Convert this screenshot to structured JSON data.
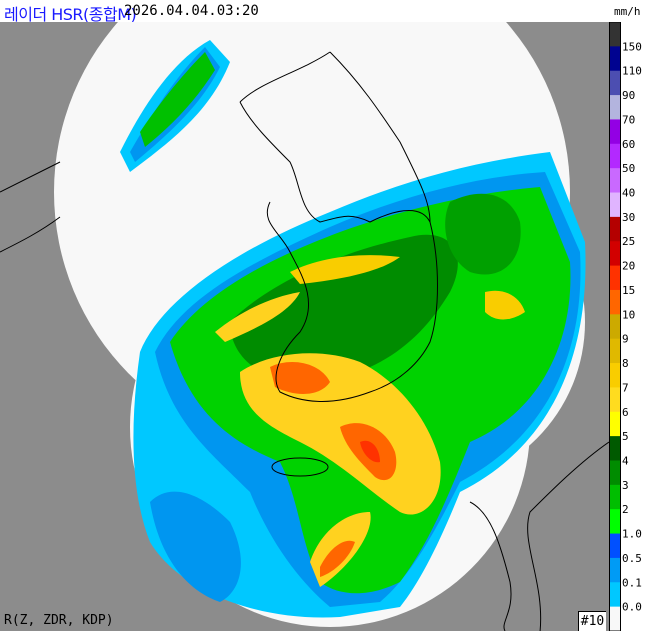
{
  "header": {
    "title": "레이더 HSR(종합M)",
    "timestamp": "2026.04.04.03:20",
    "unit": "mm/h"
  },
  "footer": {
    "method": "R(Z, ZDR, KDP)",
    "frame_number": "#10"
  },
  "map": {
    "background_color": "#8c8c8c",
    "coverage_color": "#f8f8f8",
    "coastline_color": "#000000"
  },
  "legend": {
    "labels": [
      "150",
      "110",
      "90",
      "70",
      "60",
      "50",
      "40",
      "30",
      "25",
      "20",
      "15",
      "10",
      "9",
      "8",
      "7",
      "6",
      "5",
      "4",
      "3",
      "2",
      "1.0",
      "0.5",
      "0.1",
      "0.0"
    ],
    "colors": [
      "#333333",
      "#000390",
      "#4c4eb1",
      "#b3b4de",
      "#9300e4",
      "#b329ff",
      "#c969ff",
      "#e0b4ff",
      "#b40000",
      "#d20000",
      "#ff3200",
      "#ff6600",
      "#ccaa00",
      "#e0b900",
      "#f9cd00",
      "#ffdc1f",
      "#ffff00",
      "#005a00",
      "#008c00",
      "#00be00",
      "#00ff00",
      "#0050ff",
      "#009bf5",
      "#00c8ff",
      "#f8f8f8"
    ]
  }
}
